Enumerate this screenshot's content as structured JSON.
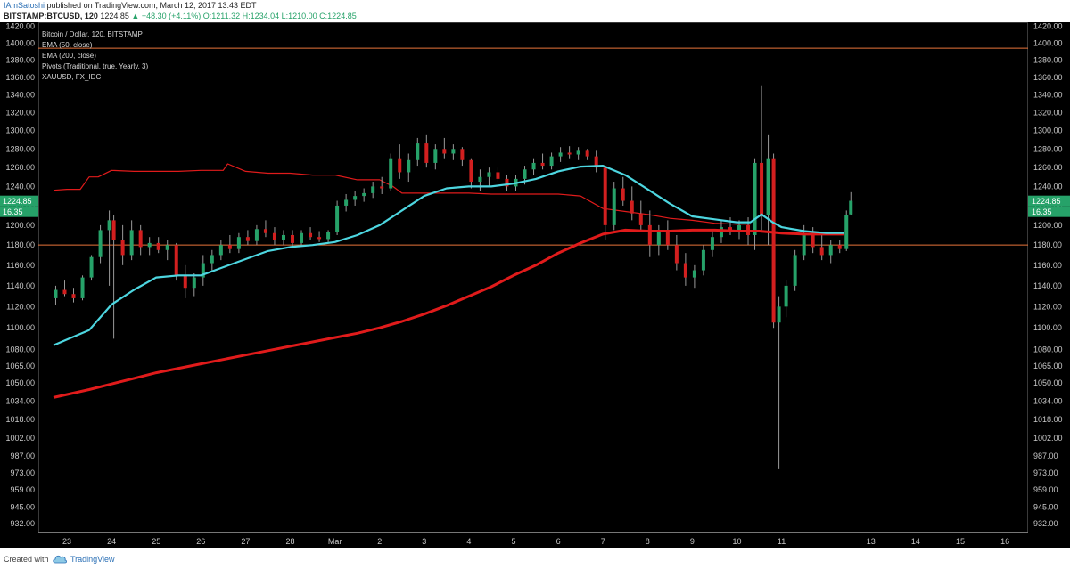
{
  "header": {
    "author": "IAmSatoshi",
    "published_text": "published on TradingView.com, March 12, 2017 13:43 EDT",
    "symbol": "BITSTAMP:BTCUSD, 120",
    "last_price": "1224.85",
    "change": "▲ +48.30 (+4.11%)",
    "ohlc_values": "O:1211.32 H:1234.04 L:1210.00 C:1224.85"
  },
  "legend": {
    "title": "Bitcoin / Dollar, 120, BITSTAMP",
    "items": [
      "EMA (50, close)",
      "EMA (200, close)",
      "Pivots (Traditional, true, Yearly, 3)",
      "XAUUSD, FX_IDC"
    ]
  },
  "footer": {
    "created_with": "Created with",
    "brand": "TradingView"
  },
  "colors": {
    "background": "#000000",
    "up": "#26a269",
    "down": "#d21f1f",
    "ema50": "#4dd6e0",
    "ema200": "#e01b1b",
    "pivot": "#e8743b",
    "xau": "#e01b1b"
  },
  "chart_data": {
    "type": "line",
    "title": "Bitcoin / Dollar, 120, BITSTAMP",
    "y_axis": {
      "side": "both",
      "scale": "log",
      "ylim": [
        925,
        1425
      ],
      "tick_labels": [
        "1420.00",
        "1400.00",
        "1380.00",
        "1360.00",
        "1340.00",
        "1320.00",
        "1300.00",
        "1280.00",
        "1260.00",
        "1240.00",
        "1220.00",
        "1200.00",
        "1180.00",
        "1160.00",
        "1140.00",
        "1120.00",
        "1100.00",
        "1080.00",
        "1065.00",
        "1050.00",
        "1034.00",
        "1018.00",
        "1002.00",
        "987.00",
        "973.00",
        "959.00",
        "945.00",
        "932.00"
      ]
    },
    "x_axis": {
      "tick_labels": [
        "23",
        "24",
        "25",
        "26",
        "27",
        "28",
        "Mar",
        "2",
        "3",
        "4",
        "5",
        "6",
        "7",
        "8",
        "9",
        "10",
        "11",
        "13",
        "14",
        "15",
        "16"
      ],
      "tick_days": [
        23,
        24,
        25,
        26,
        27,
        28,
        29,
        30,
        31,
        32,
        33,
        34,
        35,
        36,
        37,
        38,
        39,
        41,
        42,
        43,
        44
      ]
    },
    "price_labels": {
      "last_price": "1224.85",
      "indicator_value": "16.35"
    },
    "horizontal_levels": [
      {
        "name": "Pivots (Traditional, true, Yearly, 3)",
        "value": 1394
      },
      {
        "name": "Pivots (Traditional, true, Yearly, 3)",
        "value": 1180
      }
    ],
    "series": [
      {
        "name": "EMA (50, close)",
        "color": "#4dd6e0",
        "x": [
          22.7,
          23.5,
          24.0,
          24.5,
          25.0,
          25.5,
          26.0,
          26.5,
          27.0,
          27.5,
          28.0,
          28.5,
          29.0,
          29.5,
          30.0,
          30.5,
          31.0,
          31.5,
          32.0,
          32.5,
          33.0,
          33.5,
          34.0,
          34.5,
          35.0,
          35.5,
          36.0,
          36.5,
          37.0,
          37.5,
          38.0,
          38.3,
          38.55,
          38.8,
          39.0,
          39.5,
          40.0,
          40.4
        ],
        "y": [
          1084,
          1098,
          1122,
          1136,
          1148,
          1150,
          1150,
          1158,
          1166,
          1174,
          1178,
          1180,
          1183,
          1190,
          1200,
          1215,
          1230,
          1238,
          1240,
          1240,
          1243,
          1248,
          1256,
          1261,
          1262,
          1252,
          1237,
          1222,
          1209,
          1206,
          1203,
          1203,
          1211,
          1203,
          1198,
          1194,
          1192,
          1192
        ]
      },
      {
        "name": "EMA (200, close)",
        "color": "#e01b1b",
        "x": [
          22.7,
          23.5,
          24.0,
          24.5,
          25.0,
          25.5,
          26.0,
          26.5,
          27.0,
          27.5,
          28.0,
          28.5,
          29.0,
          29.5,
          30.0,
          30.5,
          31.0,
          31.5,
          32.0,
          32.5,
          33.0,
          33.5,
          34.0,
          34.5,
          35.0,
          35.5,
          36.0,
          36.5,
          37.0,
          37.5,
          38.0,
          38.5,
          39.0,
          39.5,
          40.0,
          40.4
        ],
        "y": [
          1037,
          1044,
          1049,
          1054,
          1059,
          1063,
          1067,
          1071,
          1075,
          1079,
          1083,
          1087,
          1091,
          1095,
          1100,
          1106,
          1113,
          1121,
          1130,
          1139,
          1150,
          1160,
          1172,
          1182,
          1191,
          1195,
          1194,
          1194,
          1195,
          1195,
          1194,
          1194,
          1192,
          1191,
          1191,
          1191
        ]
      },
      {
        "name": "XAUUSD, FX_IDC",
        "color": "#e01b1b",
        "x": [
          22.7,
          23.0,
          23.3,
          23.5,
          23.7,
          24.0,
          24.5,
          25.0,
          25.5,
          26.0,
          26.5,
          26.6,
          27.0,
          27.5,
          28.0,
          28.5,
          29.0,
          29.5,
          30.0,
          30.3,
          30.5,
          31.0,
          31.5,
          32.0,
          32.5,
          33.0,
          33.5,
          34.0,
          34.5,
          35.0,
          35.5,
          36.0,
          36.5,
          37.0,
          37.5,
          38.0,
          38.3
        ],
        "y": [
          1236,
          1237,
          1237,
          1250,
          1250,
          1257,
          1256,
          1256,
          1256,
          1257,
          1257,
          1264,
          1256,
          1254,
          1254,
          1252,
          1252,
          1247,
          1247,
          1240,
          1233,
          1233,
          1233,
          1233,
          1232,
          1232,
          1232,
          1232,
          1230,
          1217,
          1214,
          1211,
          1207,
          1205,
          1202,
          1201,
          1201
        ]
      }
    ],
    "price_candles": [
      {
        "x": 22.75,
        "o": 1128,
        "h": 1140,
        "l": 1122,
        "c": 1136
      },
      {
        "x": 22.95,
        "o": 1136,
        "h": 1145,
        "l": 1130,
        "c": 1132
      },
      {
        "x": 23.15,
        "o": 1132,
        "h": 1138,
        "l": 1124,
        "c": 1128
      },
      {
        "x": 23.35,
        "o": 1128,
        "h": 1150,
        "l": 1126,
        "c": 1148
      },
      {
        "x": 23.55,
        "o": 1148,
        "h": 1170,
        "l": 1145,
        "c": 1168
      },
      {
        "x": 23.75,
        "o": 1168,
        "h": 1200,
        "l": 1162,
        "c": 1195
      },
      {
        "x": 23.95,
        "o": 1195,
        "h": 1215,
        "l": 1140,
        "c": 1205
      },
      {
        "x": 24.05,
        "o": 1205,
        "h": 1210,
        "l": 1090,
        "c": 1185
      },
      {
        "x": 24.25,
        "o": 1185,
        "h": 1200,
        "l": 1160,
        "c": 1170
      },
      {
        "x": 24.45,
        "o": 1170,
        "h": 1205,
        "l": 1165,
        "c": 1195
      },
      {
        "x": 24.65,
        "o": 1195,
        "h": 1200,
        "l": 1170,
        "c": 1178
      },
      {
        "x": 24.85,
        "o": 1178,
        "h": 1188,
        "l": 1170,
        "c": 1182
      },
      {
        "x": 25.05,
        "o": 1182,
        "h": 1188,
        "l": 1172,
        "c": 1175
      },
      {
        "x": 25.25,
        "o": 1175,
        "h": 1185,
        "l": 1165,
        "c": 1180
      },
      {
        "x": 25.45,
        "o": 1180,
        "h": 1182,
        "l": 1145,
        "c": 1150
      },
      {
        "x": 25.65,
        "o": 1150,
        "h": 1160,
        "l": 1128,
        "c": 1138
      },
      {
        "x": 25.85,
        "o": 1138,
        "h": 1152,
        "l": 1130,
        "c": 1148
      },
      {
        "x": 26.05,
        "o": 1148,
        "h": 1170,
        "l": 1140,
        "c": 1162
      },
      {
        "x": 26.25,
        "o": 1162,
        "h": 1175,
        "l": 1155,
        "c": 1170
      },
      {
        "x": 26.45,
        "o": 1170,
        "h": 1185,
        "l": 1165,
        "c": 1180
      },
      {
        "x": 26.65,
        "o": 1180,
        "h": 1190,
        "l": 1172,
        "c": 1176
      },
      {
        "x": 26.85,
        "o": 1176,
        "h": 1192,
        "l": 1172,
        "c": 1188
      },
      {
        "x": 27.05,
        "o": 1188,
        "h": 1195,
        "l": 1180,
        "c": 1184
      },
      {
        "x": 27.25,
        "o": 1184,
        "h": 1200,
        "l": 1180,
        "c": 1196
      },
      {
        "x": 27.45,
        "o": 1196,
        "h": 1205,
        "l": 1188,
        "c": 1192
      },
      {
        "x": 27.65,
        "o": 1192,
        "h": 1198,
        "l": 1180,
        "c": 1185
      },
      {
        "x": 27.85,
        "o": 1185,
        "h": 1195,
        "l": 1180,
        "c": 1190
      },
      {
        "x": 28.05,
        "o": 1190,
        "h": 1195,
        "l": 1178,
        "c": 1182
      },
      {
        "x": 28.25,
        "o": 1182,
        "h": 1195,
        "l": 1180,
        "c": 1192
      },
      {
        "x": 28.45,
        "o": 1192,
        "h": 1198,
        "l": 1185,
        "c": 1188
      },
      {
        "x": 28.65,
        "o": 1188,
        "h": 1194,
        "l": 1183,
        "c": 1186
      },
      {
        "x": 28.85,
        "o": 1186,
        "h": 1195,
        "l": 1183,
        "c": 1193
      },
      {
        "x": 29.05,
        "o": 1193,
        "h": 1225,
        "l": 1190,
        "c": 1220
      },
      {
        "x": 29.25,
        "o": 1220,
        "h": 1232,
        "l": 1214,
        "c": 1226
      },
      {
        "x": 29.45,
        "o": 1226,
        "h": 1235,
        "l": 1220,
        "c": 1230
      },
      {
        "x": 29.65,
        "o": 1230,
        "h": 1238,
        "l": 1224,
        "c": 1233
      },
      {
        "x": 29.85,
        "o": 1233,
        "h": 1245,
        "l": 1228,
        "c": 1240
      },
      {
        "x": 30.05,
        "o": 1240,
        "h": 1250,
        "l": 1232,
        "c": 1238
      },
      {
        "x": 30.25,
        "o": 1238,
        "h": 1275,
        "l": 1235,
        "c": 1270
      },
      {
        "x": 30.45,
        "o": 1270,
        "h": 1285,
        "l": 1248,
        "c": 1255
      },
      {
        "x": 30.65,
        "o": 1255,
        "h": 1275,
        "l": 1245,
        "c": 1268
      },
      {
        "x": 30.85,
        "o": 1268,
        "h": 1292,
        "l": 1262,
        "c": 1286
      },
      {
        "x": 31.05,
        "o": 1286,
        "h": 1295,
        "l": 1260,
        "c": 1265
      },
      {
        "x": 31.25,
        "o": 1265,
        "h": 1285,
        "l": 1258,
        "c": 1280
      },
      {
        "x": 31.45,
        "o": 1280,
        "h": 1292,
        "l": 1270,
        "c": 1275
      },
      {
        "x": 31.65,
        "o": 1275,
        "h": 1285,
        "l": 1268,
        "c": 1280
      },
      {
        "x": 31.85,
        "o": 1280,
        "h": 1282,
        "l": 1262,
        "c": 1268
      },
      {
        "x": 32.05,
        "o": 1268,
        "h": 1270,
        "l": 1238,
        "c": 1245
      },
      {
        "x": 32.25,
        "o": 1245,
        "h": 1258,
        "l": 1235,
        "c": 1250
      },
      {
        "x": 32.45,
        "o": 1250,
        "h": 1260,
        "l": 1240,
        "c": 1255
      },
      {
        "x": 32.65,
        "o": 1255,
        "h": 1260,
        "l": 1245,
        "c": 1248
      },
      {
        "x": 32.85,
        "o": 1248,
        "h": 1252,
        "l": 1235,
        "c": 1240
      },
      {
        "x": 33.05,
        "o": 1240,
        "h": 1252,
        "l": 1235,
        "c": 1248
      },
      {
        "x": 33.25,
        "o": 1248,
        "h": 1262,
        "l": 1242,
        "c": 1258
      },
      {
        "x": 33.45,
        "o": 1258,
        "h": 1270,
        "l": 1252,
        "c": 1265
      },
      {
        "x": 33.65,
        "o": 1265,
        "h": 1275,
        "l": 1258,
        "c": 1262
      },
      {
        "x": 33.85,
        "o": 1262,
        "h": 1276,
        "l": 1258,
        "c": 1272
      },
      {
        "x": 34.05,
        "o": 1272,
        "h": 1282,
        "l": 1266,
        "c": 1276
      },
      {
        "x": 34.25,
        "o": 1276,
        "h": 1283,
        "l": 1270,
        "c": 1274
      },
      {
        "x": 34.45,
        "o": 1274,
        "h": 1282,
        "l": 1268,
        "c": 1278
      },
      {
        "x": 34.65,
        "o": 1278,
        "h": 1280,
        "l": 1268,
        "c": 1272
      },
      {
        "x": 34.85,
        "o": 1272,
        "h": 1278,
        "l": 1255,
        "c": 1260
      },
      {
        "x": 35.05,
        "o": 1260,
        "h": 1262,
        "l": 1185,
        "c": 1200
      },
      {
        "x": 35.25,
        "o": 1200,
        "h": 1245,
        "l": 1195,
        "c": 1238
      },
      {
        "x": 35.45,
        "o": 1238,
        "h": 1250,
        "l": 1220,
        "c": 1225
      },
      {
        "x": 35.65,
        "o": 1225,
        "h": 1240,
        "l": 1205,
        "c": 1212
      },
      {
        "x": 35.85,
        "o": 1212,
        "h": 1225,
        "l": 1195,
        "c": 1200
      },
      {
        "x": 36.05,
        "o": 1200,
        "h": 1215,
        "l": 1168,
        "c": 1180
      },
      {
        "x": 36.25,
        "o": 1180,
        "h": 1200,
        "l": 1170,
        "c": 1195
      },
      {
        "x": 36.45,
        "o": 1195,
        "h": 1205,
        "l": 1175,
        "c": 1180
      },
      {
        "x": 36.65,
        "o": 1180,
        "h": 1190,
        "l": 1155,
        "c": 1162
      },
      {
        "x": 36.85,
        "o": 1162,
        "h": 1172,
        "l": 1140,
        "c": 1148
      },
      {
        "x": 37.05,
        "o": 1148,
        "h": 1160,
        "l": 1138,
        "c": 1155
      },
      {
        "x": 37.25,
        "o": 1155,
        "h": 1180,
        "l": 1150,
        "c": 1175
      },
      {
        "x": 37.45,
        "o": 1175,
        "h": 1195,
        "l": 1168,
        "c": 1188
      },
      {
        "x": 37.65,
        "o": 1188,
        "h": 1205,
        "l": 1182,
        "c": 1198
      },
      {
        "x": 37.85,
        "o": 1198,
        "h": 1208,
        "l": 1190,
        "c": 1194
      },
      {
        "x": 38.05,
        "o": 1194,
        "h": 1205,
        "l": 1186,
        "c": 1200
      },
      {
        "x": 38.25,
        "o": 1200,
        "h": 1208,
        "l": 1180,
        "c": 1190
      },
      {
        "x": 38.4,
        "o": 1190,
        "h": 1270,
        "l": 1175,
        "c": 1265
      },
      {
        "x": 38.55,
        "o": 1265,
        "h": 1350,
        "l": 1195,
        "c": 1210
      },
      {
        "x": 38.7,
        "o": 1210,
        "h": 1295,
        "l": 1180,
        "c": 1270
      },
      {
        "x": 38.82,
        "o": 1270,
        "h": 1275,
        "l": 1100,
        "c": 1105
      },
      {
        "x": 38.94,
        "o": 1105,
        "h": 1130,
        "l": 976,
        "c": 1120
      },
      {
        "x": 39.1,
        "o": 1120,
        "h": 1145,
        "l": 1110,
        "c": 1140
      },
      {
        "x": 39.3,
        "o": 1140,
        "h": 1175,
        "l": 1135,
        "c": 1170
      },
      {
        "x": 39.5,
        "o": 1170,
        "h": 1200,
        "l": 1165,
        "c": 1192
      },
      {
        "x": 39.7,
        "o": 1192,
        "h": 1198,
        "l": 1172,
        "c": 1178
      },
      {
        "x": 39.9,
        "o": 1178,
        "h": 1190,
        "l": 1165,
        "c": 1170
      },
      {
        "x": 40.1,
        "o": 1170,
        "h": 1185,
        "l": 1162,
        "c": 1180
      },
      {
        "x": 40.3,
        "o": 1180,
        "h": 1185,
        "l": 1172,
        "c": 1176
      },
      {
        "x": 40.45,
        "o": 1176,
        "h": 1215,
        "l": 1174,
        "c": 1210
      },
      {
        "x": 40.55,
        "o": 1211,
        "h": 1234,
        "l": 1210,
        "c": 1225
      }
    ],
    "grid": false,
    "legend_position": "top-left"
  }
}
